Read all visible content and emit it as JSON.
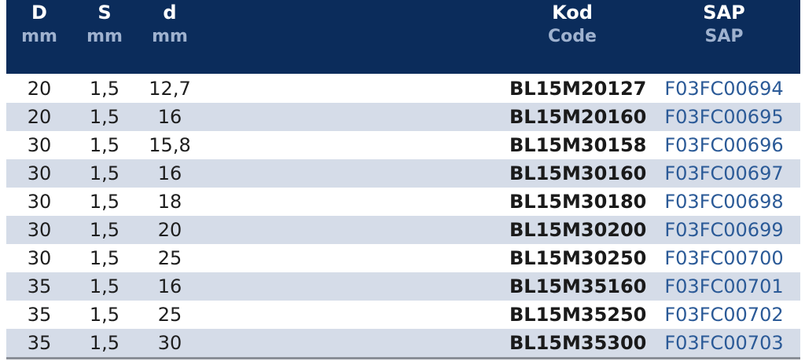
{
  "table": {
    "headers": [
      {
        "title": "D",
        "subtitle": "mm"
      },
      {
        "title": "S",
        "subtitle": "mm"
      },
      {
        "title": "d",
        "subtitle": "mm"
      },
      {
        "title": "Kod",
        "subtitle": "Code"
      },
      {
        "title": "SAP",
        "subtitle": "SAP"
      }
    ],
    "rows": [
      [
        "20",
        "1,5",
        "12,7",
        "BL15M20127",
        "F03FC00694"
      ],
      [
        "20",
        "1,5",
        "16",
        "BL15M20160",
        "F03FC00695"
      ],
      [
        "30",
        "1,5",
        "15,8",
        "BL15M30158",
        "F03FC00696"
      ],
      [
        "30",
        "1,5",
        "16",
        "BL15M30160",
        "F03FC00697"
      ],
      [
        "30",
        "1,5",
        "18",
        "BL15M30180",
        "F03FC00698"
      ],
      [
        "30",
        "1,5",
        "20",
        "BL15M30200",
        "F03FC00699"
      ],
      [
        "30",
        "1,5",
        "25",
        "BL15M30250",
        "F03FC00700"
      ],
      [
        "35",
        "1,5",
        "16",
        "BL15M35160",
        "F03FC00701"
      ],
      [
        "35",
        "1,5",
        "25",
        "BL15M35250",
        "F03FC00702"
      ],
      [
        "35",
        "1,5",
        "30",
        "BL15M35300",
        "F03FC00703"
      ]
    ]
  }
}
